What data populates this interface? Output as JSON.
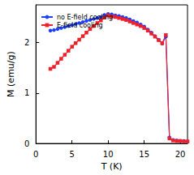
{
  "chart_data": {
    "type": "line",
    "x_label": "T (K)",
    "y_label": "M (emu/g)",
    "x": [
      2,
      2.5,
      3,
      3.5,
      4,
      4.5,
      5,
      5.5,
      6,
      6.5,
      7,
      7.5,
      8,
      8.5,
      9,
      9.5,
      10,
      10.5,
      11,
      11.5,
      12,
      12.5,
      13,
      13.5,
      14,
      14.5,
      15,
      15.5,
      16,
      16.5,
      17,
      17.5,
      18,
      18.5,
      19,
      19.5,
      20,
      20.5,
      21
    ],
    "series": [
      {
        "name": "no E-field cooling",
        "color": "#1f3fff",
        "marker": "circle",
        "line_style": "solid",
        "values": [
          2.24,
          2.25,
          2.27,
          2.29,
          2.31,
          2.33,
          2.35,
          2.37,
          2.39,
          2.41,
          2.43,
          2.45,
          2.47,
          2.49,
          2.51,
          2.55,
          2.57,
          2.56,
          2.54,
          2.53,
          2.51,
          2.49,
          2.46,
          2.43,
          2.4,
          2.36,
          2.32,
          2.26,
          2.2,
          2.13,
          2.06,
          1.98,
          2.12,
          0.12,
          0.07,
          0.06,
          0.05,
          0.05,
          0.04
        ]
      },
      {
        "name": "E-field cooling",
        "color": "#f0202a",
        "marker": "square",
        "line_style": "solid",
        "values": [
          1.48,
          1.52,
          1.6,
          1.68,
          1.76,
          1.84,
          1.92,
          1.99,
          2.06,
          2.13,
          2.2,
          2.27,
          2.33,
          2.39,
          2.44,
          2.5,
          2.54,
          2.52,
          2.51,
          2.49,
          2.47,
          2.45,
          2.42,
          2.39,
          2.36,
          2.33,
          2.29,
          2.24,
          2.18,
          2.12,
          2.05,
          1.99,
          2.15,
          0.1,
          0.06,
          0.05,
          0.05,
          0.04,
          0.04
        ]
      }
    ],
    "xlim": [
      0,
      21
    ],
    "xticks": [
      0,
      5,
      10,
      15,
      20
    ],
    "ylim": [
      0,
      2.75
    ],
    "yticks": [
      0,
      1,
      2
    ],
    "legend": "upper left",
    "grid": false
  }
}
